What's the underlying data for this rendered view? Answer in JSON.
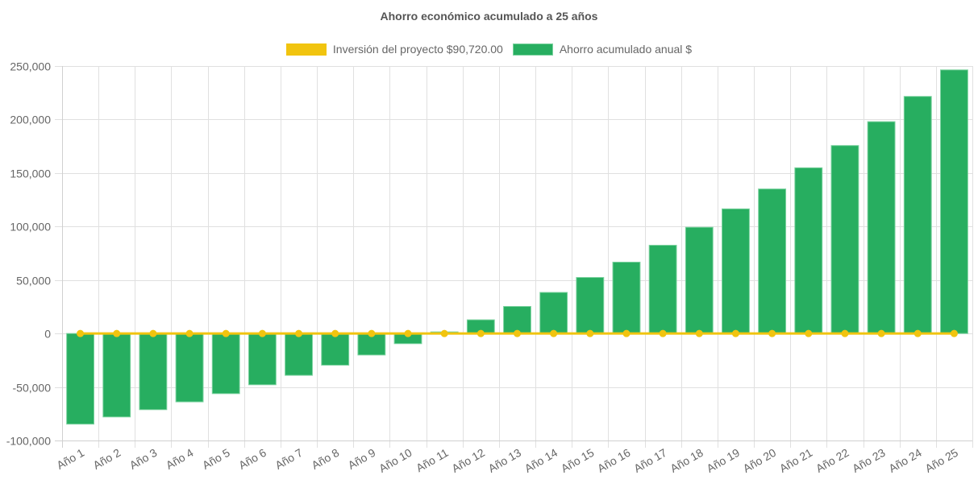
{
  "chart_data": {
    "type": "bar",
    "title": "Ahorro económico acumulado a 25 años",
    "xlabel": "",
    "ylabel": "",
    "ylim": [
      -100000,
      250000
    ],
    "yticks": [
      250000,
      200000,
      150000,
      100000,
      50000,
      0,
      -50000,
      -100000
    ],
    "ytick_labels": [
      "250,000",
      "200,000",
      "150,000",
      "100,000",
      "50,000",
      "0",
      "-50,000",
      "-100,000"
    ],
    "grid": true,
    "legend_position": "top-center",
    "categories": [
      "Año 1",
      "Año 2",
      "Año 3",
      "Año 4",
      "Año 5",
      "Año 6",
      "Año 7",
      "Año 8",
      "Año 9",
      "Año 10",
      "Año 11",
      "Año 12",
      "Año 13",
      "Año 14",
      "Año 15",
      "Año 16",
      "Año 17",
      "Año 18",
      "Año 19",
      "Año 20",
      "Año 21",
      "Año 22",
      "Año 23",
      "Año 24",
      "Año 25"
    ],
    "series": [
      {
        "name": "Inversión del proyecto $90,720.00",
        "type": "line",
        "color": "#f1c40f",
        "values": [
          0,
          0,
          0,
          0,
          0,
          0,
          0,
          0,
          0,
          0,
          0,
          0,
          0,
          0,
          0,
          0,
          0,
          0,
          0,
          0,
          0,
          0,
          0,
          0,
          0
        ]
      },
      {
        "name": "Ahorro acumulado anual $",
        "type": "bar",
        "color": "#27ae60",
        "border_color": "#7dd3a0",
        "values": [
          -84700,
          -78000,
          -71200,
          -63900,
          -56200,
          -47900,
          -39100,
          -29600,
          -20100,
          -9500,
          1500,
          12800,
          25300,
          38400,
          52400,
          66700,
          82500,
          99300,
          116500,
          135100,
          154900,
          175700,
          198000,
          221600,
          246400
        ]
      }
    ]
  }
}
